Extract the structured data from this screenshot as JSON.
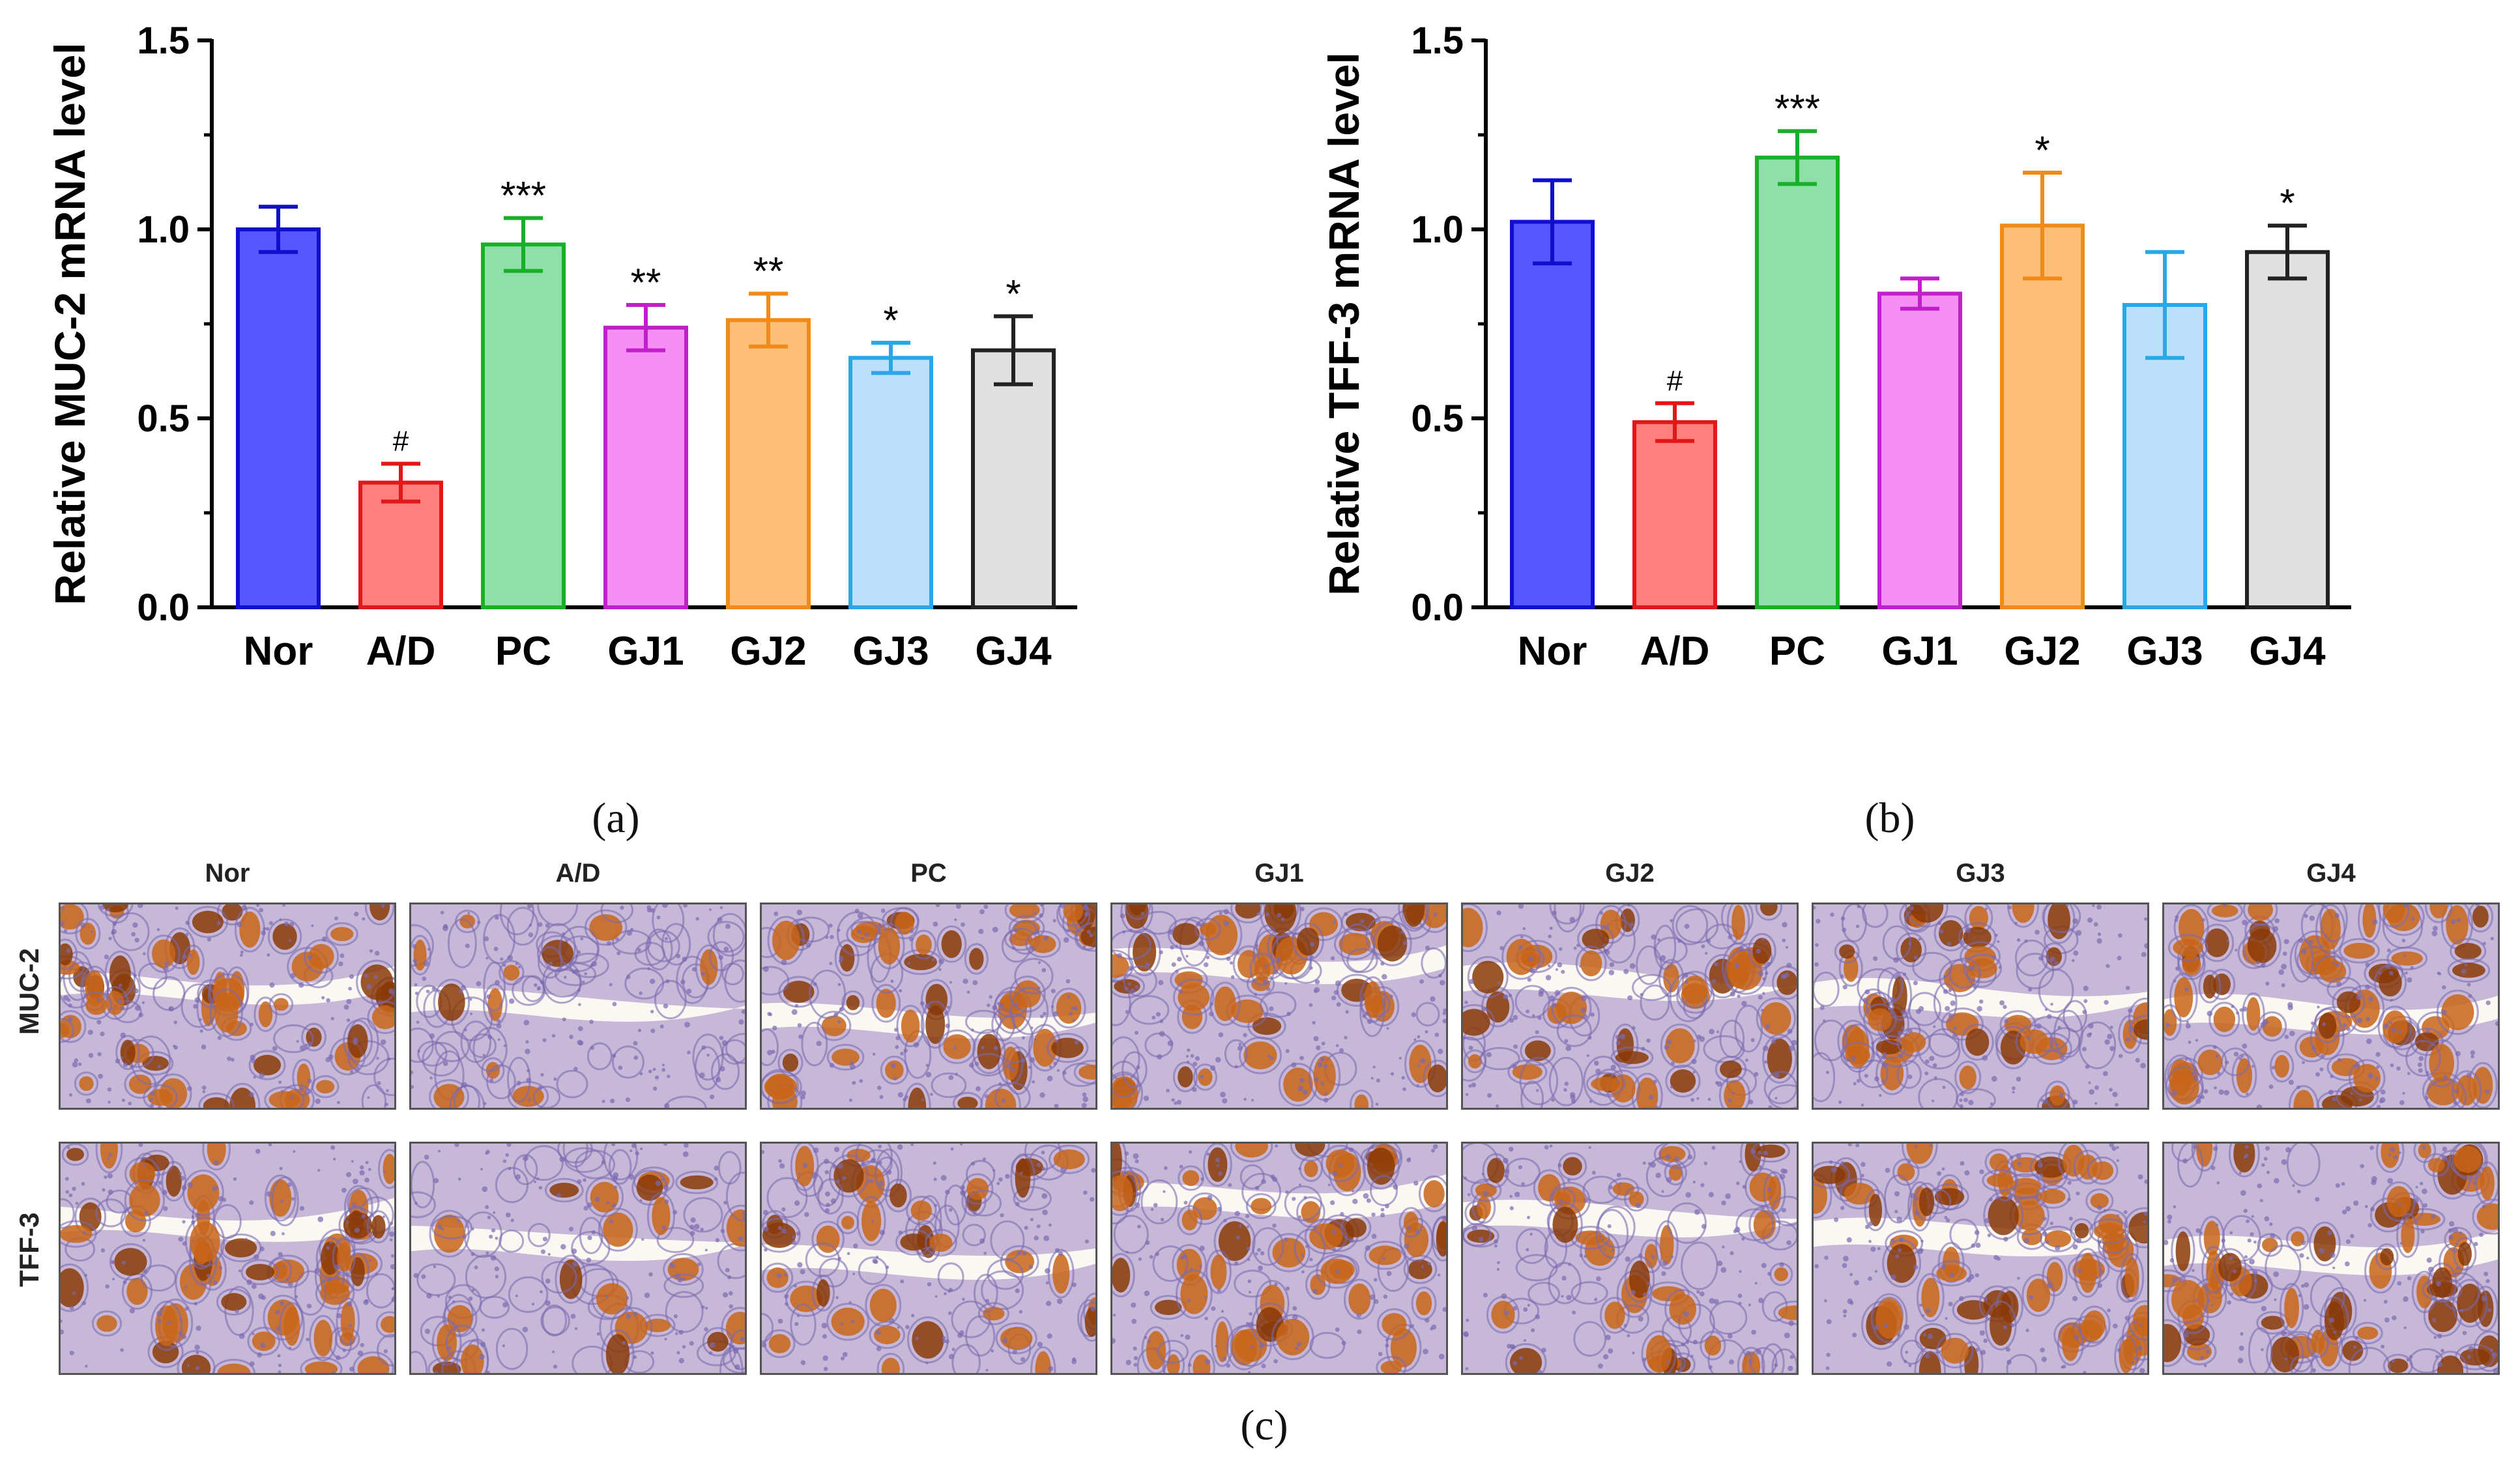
{
  "chart_data": [
    {
      "type": "bar",
      "panel": "(a)",
      "ylabel": "Relative MUC-2 mRNA level",
      "ylim": [
        0,
        1.5
      ],
      "yticks": [
        "0.0",
        "0.5",
        "1.0",
        "1.5"
      ],
      "categories": [
        "Nor",
        "A/D",
        "PC",
        "GJ1",
        "GJ2",
        "GJ3",
        "GJ4"
      ],
      "values": [
        1.0,
        0.33,
        0.96,
        0.74,
        0.76,
        0.66,
        0.68
      ],
      "errors": [
        0.06,
        0.05,
        0.07,
        0.06,
        0.07,
        0.04,
        0.09
      ],
      "annotations": [
        "",
        "#",
        "***",
        "**",
        "**",
        "*",
        "*"
      ],
      "colors": [
        "#5757ff",
        "#ff7f7f",
        "#8ee0a8",
        "#f58ff5",
        "#ffbe7a",
        "#bde0fa",
        "#e0e0e0"
      ],
      "edge_colors": [
        "#1010cc",
        "#e01818",
        "#18b028",
        "#c020c8",
        "#f08a18",
        "#28a8e8",
        "#222222"
      ],
      "grid": false
    },
    {
      "type": "bar",
      "panel": "(b)",
      "ylabel": "Relative TFF-3 mRNA level",
      "ylim": [
        0,
        1.5
      ],
      "yticks": [
        "0.0",
        "0.5",
        "1.0",
        "1.5"
      ],
      "categories": [
        "Nor",
        "A/D",
        "PC",
        "GJ1",
        "GJ2",
        "GJ3",
        "GJ4"
      ],
      "values": [
        1.02,
        0.49,
        1.19,
        0.83,
        1.01,
        0.8,
        0.94
      ],
      "errors": [
        0.11,
        0.05,
        0.07,
        0.04,
        0.14,
        0.14,
        0.07
      ],
      "annotations": [
        "",
        "#",
        "***",
        "",
        "*",
        "",
        "*"
      ],
      "colors": [
        "#5757ff",
        "#ff7f7f",
        "#8ee0a8",
        "#f58ff5",
        "#ffbe7a",
        "#bde0fa",
        "#e0e0e0"
      ],
      "edge_colors": [
        "#1010cc",
        "#e01818",
        "#18b028",
        "#c020c8",
        "#f08a18",
        "#28a8e8",
        "#222222"
      ],
      "grid": false
    }
  ],
  "captions": {
    "a": "(a)",
    "b": "(b)",
    "c": "(c)"
  },
  "micrographs": {
    "columns": [
      "Nor",
      "A/D",
      "PC",
      "GJ1",
      "GJ2",
      "GJ3",
      "GJ4"
    ],
    "rows": [
      "MUC-2",
      "TFF-3"
    ],
    "stain_intensity": [
      [
        0.8,
        0.12,
        0.7,
        0.55,
        0.65,
        0.6,
        0.85
      ],
      [
        0.8,
        0.35,
        0.55,
        0.6,
        0.45,
        0.9,
        0.85
      ]
    ],
    "colors": {
      "tissue": "#c8b8d8",
      "nuclei": "#7a6ab0",
      "stain": "#c8651a",
      "stain_dark": "#8a3a08",
      "lumen": "#fbf7f2"
    }
  }
}
